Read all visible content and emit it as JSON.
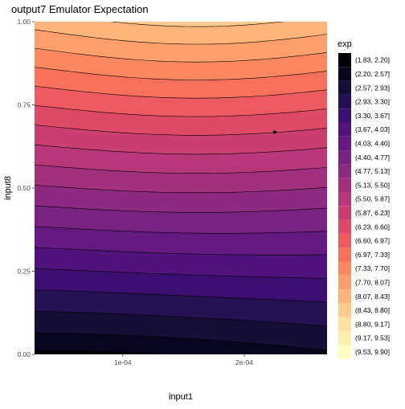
{
  "chart_data": {
    "type": "contour",
    "title": "output7  Emulator Expectation",
    "xlabel": "input1",
    "ylabel": "input8",
    "xlim": [
      2.75e-05,
      0.000268
    ],
    "ylim": [
      0,
      1
    ],
    "x_ticks": [
      {
        "value": 0.0001,
        "label": "1e-04"
      },
      {
        "value": 0.0002,
        "label": "2e-04"
      }
    ],
    "y_ticks": [
      {
        "value": 0,
        "label": "0.00"
      },
      {
        "value": 0.25,
        "label": "0.25"
      },
      {
        "value": 0.5,
        "label": "0.50"
      },
      {
        "value": 0.75,
        "label": "0.75"
      },
      {
        "value": 1,
        "label": "1.00"
      }
    ],
    "grid": false,
    "legend": {
      "title": "exp",
      "placement": "right",
      "entries": [
        {
          "label": "(1.83, 2.20]",
          "color": "#000004"
        },
        {
          "label": "(2.20, 2.57]",
          "color": "#07061c"
        },
        {
          "label": "(2.57, 2.93]",
          "color": "#150e37"
        },
        {
          "label": "(2.93, 3.30]",
          "color": "#251255"
        },
        {
          "label": "(3.30, 3.67]",
          "color": "#3b0f70"
        },
        {
          "label": "(3.67, 4.03]",
          "color": "#51127c"
        },
        {
          "label": "(4.03, 4.40]",
          "color": "#641a80"
        },
        {
          "label": "(4.40, 4.77]",
          "color": "#782281"
        },
        {
          "label": "(4.77, 5.13]",
          "color": "#8c2981"
        },
        {
          "label": "(5.13, 5.50]",
          "color": "#a1307e"
        },
        {
          "label": "(5.50, 5.87]",
          "color": "#b73779"
        },
        {
          "label": "(5.87, 6.23]",
          "color": "#ca3e72"
        },
        {
          "label": "(6.23, 6.60]",
          "color": "#de4968"
        },
        {
          "label": "(6.60, 6.97]",
          "color": "#ed5a5f"
        },
        {
          "label": "(6.97, 7.33]",
          "color": "#f6705c"
        },
        {
          "label": "(7.33, 7.70]",
          "color": "#fb8761"
        },
        {
          "label": "(7.70, 8.07]",
          "color": "#fe9f6d"
        },
        {
          "label": "(8.07, 8.43]",
          "color": "#feb47b"
        },
        {
          "label": "(8.43, 8.80]",
          "color": "#fecb8e"
        },
        {
          "label": "(8.80, 9.17]",
          "color": "#fde0a1"
        },
        {
          "label": "(9.17, 9.53]",
          "color": "#fceeb0"
        },
        {
          "label": "(9.53, 9.90]",
          "color": "#fcfdbf"
        }
      ]
    },
    "points": [
      {
        "x": 0.000225,
        "y": 0.668
      }
    ]
  }
}
